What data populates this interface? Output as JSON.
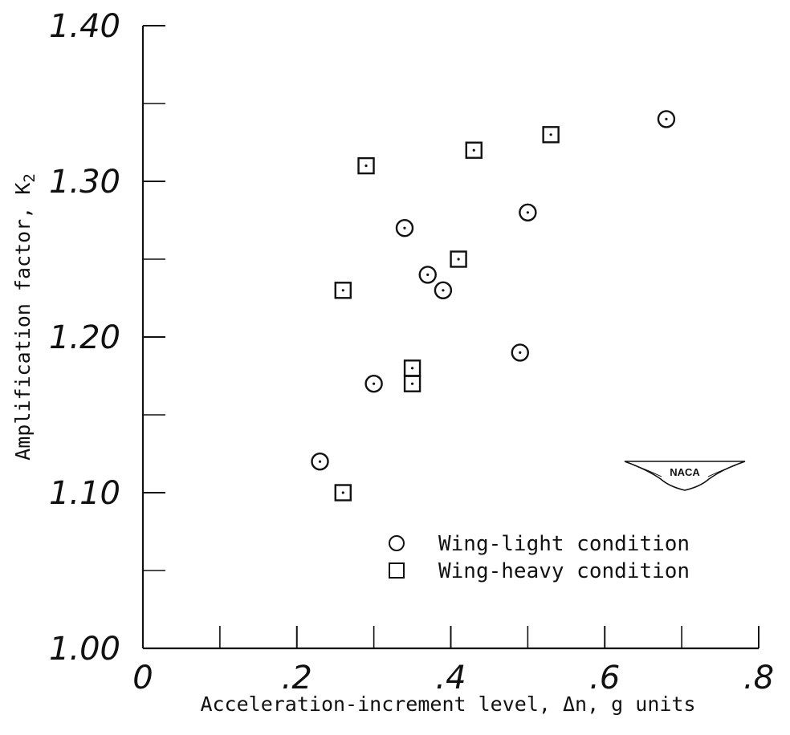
{
  "chart_data": {
    "type": "scatter",
    "xlabel": "Acceleration-increment level, Δn, g units",
    "ylabel": "Amplification factor, K",
    "ylabel_subscript": "2",
    "xlim": [
      0,
      0.8
    ],
    "ylim": [
      1.0,
      1.4
    ],
    "x_ticks": [
      {
        "value": 0,
        "label": "0"
      },
      {
        "value": 0.2,
        "label": ".2"
      },
      {
        "value": 0.4,
        "label": ".4"
      },
      {
        "value": 0.6,
        "label": ".6"
      },
      {
        "value": 0.8,
        "label": ".8"
      }
    ],
    "x_minor_ticks": [
      0.1,
      0.3,
      0.5,
      0.7
    ],
    "y_ticks": [
      {
        "value": 1.0,
        "label": "1.00"
      },
      {
        "value": 1.1,
        "label": "1.10"
      },
      {
        "value": 1.2,
        "label": "1.20"
      },
      {
        "value": 1.3,
        "label": "1.30"
      },
      {
        "value": 1.4,
        "label": "1.40"
      }
    ],
    "y_minor_ticks": [
      1.05,
      1.15,
      1.25,
      1.35
    ],
    "grid": false,
    "legend_placement": "bottom-right",
    "series": [
      {
        "name": "Wing-light condition",
        "marker": "circle",
        "points": [
          {
            "x": 0.23,
            "y": 1.12
          },
          {
            "x": 0.3,
            "y": 1.17
          },
          {
            "x": 0.34,
            "y": 1.27
          },
          {
            "x": 0.37,
            "y": 1.24
          },
          {
            "x": 0.39,
            "y": 1.23
          },
          {
            "x": 0.49,
            "y": 1.19
          },
          {
            "x": 0.5,
            "y": 1.28
          },
          {
            "x": 0.68,
            "y": 1.34
          }
        ]
      },
      {
        "name": "Wing-heavy condition",
        "marker": "square",
        "points": [
          {
            "x": 0.26,
            "y": 1.1
          },
          {
            "x": 0.26,
            "y": 1.23
          },
          {
            "x": 0.29,
            "y": 1.31
          },
          {
            "x": 0.35,
            "y": 1.18
          },
          {
            "x": 0.35,
            "y": 1.17
          },
          {
            "x": 0.41,
            "y": 1.25
          },
          {
            "x": 0.43,
            "y": 1.32
          },
          {
            "x": 0.53,
            "y": 1.33
          }
        ]
      }
    ],
    "logo_text": "NACA"
  }
}
